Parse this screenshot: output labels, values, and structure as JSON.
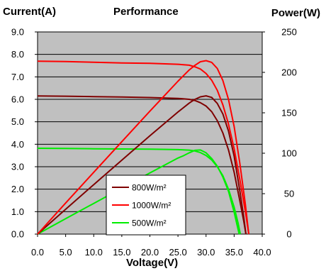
{
  "chart_data": {
    "type": "line",
    "title": "Performance",
    "xlabel": "Voltage(V)",
    "ylabel": "Current(A)",
    "y2label": "Power(W)",
    "xlim": [
      0,
      40
    ],
    "ylim": [
      0,
      9
    ],
    "y2lim": [
      0,
      250
    ],
    "x_ticks": [
      "0.0",
      "5.0",
      "10.0",
      "15.0",
      "20.0",
      "25.0",
      "30.0",
      "35.0",
      "40.0"
    ],
    "y_ticks": [
      "0.0",
      "1.0",
      "2.0",
      "3.0",
      "4.0",
      "5.0",
      "6.0",
      "7.0",
      "8.0",
      "9.0"
    ],
    "y2_ticks": [
      "0",
      "50",
      "100",
      "150",
      "200",
      "250"
    ],
    "grid": true,
    "legend_position": "bottom-center",
    "series": [
      {
        "name": "800W/m²",
        "color": "#7f0000",
        "current": [
          [
            0,
            6.15
          ],
          [
            5,
            6.14
          ],
          [
            10,
            6.12
          ],
          [
            15,
            6.1
          ],
          [
            20,
            6.08
          ],
          [
            25,
            6.04
          ],
          [
            27,
            6.0
          ],
          [
            28,
            5.95
          ],
          [
            29,
            5.85
          ],
          [
            30,
            5.7
          ],
          [
            31,
            5.45
          ],
          [
            32,
            5.05
          ],
          [
            33,
            4.5
          ],
          [
            34,
            3.75
          ],
          [
            35,
            2.75
          ],
          [
            36,
            1.5
          ],
          [
            36.7,
            0.6
          ],
          [
            37.1,
            0
          ]
        ],
        "power": [
          [
            0,
            0
          ],
          [
            5,
            30.7
          ],
          [
            10,
            61.2
          ],
          [
            15,
            91.5
          ],
          [
            20,
            121.6
          ],
          [
            25,
            151
          ],
          [
            27,
            162
          ],
          [
            28,
            166.6
          ],
          [
            29,
            169.7
          ],
          [
            30,
            171
          ],
          [
            31,
            169
          ],
          [
            32,
            161.6
          ],
          [
            33,
            148.5
          ],
          [
            34,
            127.5
          ],
          [
            35,
            96.3
          ],
          [
            36,
            54
          ],
          [
            36.7,
            22
          ],
          [
            37.1,
            0
          ]
        ]
      },
      {
        "name": "1000W/m²",
        "color": "#ff0000",
        "current": [
          [
            0,
            7.7
          ],
          [
            5,
            7.68
          ],
          [
            10,
            7.65
          ],
          [
            15,
            7.62
          ],
          [
            20,
            7.6
          ],
          [
            25,
            7.56
          ],
          [
            27,
            7.52
          ],
          [
            28,
            7.45
          ],
          [
            29,
            7.35
          ],
          [
            30,
            7.15
          ],
          [
            31,
            6.85
          ],
          [
            32,
            6.4
          ],
          [
            33,
            5.75
          ],
          [
            34,
            4.9
          ],
          [
            35,
            3.8
          ],
          [
            36,
            2.45
          ],
          [
            37,
            1.0
          ],
          [
            37.6,
            0
          ]
        ],
        "power": [
          [
            0,
            0
          ],
          [
            5,
            38.4
          ],
          [
            10,
            76.5
          ],
          [
            15,
            114.3
          ],
          [
            20,
            152
          ],
          [
            25,
            189
          ],
          [
            27,
            203
          ],
          [
            28,
            208.6
          ],
          [
            29,
            213.2
          ],
          [
            30,
            214.5
          ],
          [
            31,
            212.4
          ],
          [
            32,
            204.8
          ],
          [
            33,
            189.8
          ],
          [
            34,
            166.6
          ],
          [
            35,
            133
          ],
          [
            36,
            88.2
          ],
          [
            37,
            37
          ],
          [
            37.6,
            0
          ]
        ]
      },
      {
        "name": "500W/m²",
        "color": "#00ee00",
        "current": [
          [
            0,
            3.82
          ],
          [
            5,
            3.81
          ],
          [
            10,
            3.8
          ],
          [
            15,
            3.79
          ],
          [
            20,
            3.78
          ],
          [
            25,
            3.76
          ],
          [
            27,
            3.74
          ],
          [
            28,
            3.7
          ],
          [
            29,
            3.63
          ],
          [
            30,
            3.5
          ],
          [
            31,
            3.3
          ],
          [
            32,
            3.0
          ],
          [
            33,
            2.6
          ],
          [
            34,
            2.0
          ],
          [
            35,
            1.2
          ],
          [
            35.7,
            0.5
          ],
          [
            36.1,
            0
          ]
        ],
        "power": [
          [
            0,
            0
          ],
          [
            5,
            19
          ],
          [
            10,
            38
          ],
          [
            15,
            56.9
          ],
          [
            20,
            75.6
          ],
          [
            25,
            94
          ],
          [
            26,
            97
          ],
          [
            27,
            100.5
          ],
          [
            28,
            103.6
          ],
          [
            29,
            104
          ],
          [
            30,
            100.5
          ],
          [
            31,
            93.5
          ],
          [
            32,
            84
          ],
          [
            33,
            70.5
          ],
          [
            34,
            53
          ],
          [
            35,
            27
          ],
          [
            35.5,
            12
          ],
          [
            35.9,
            0
          ]
        ]
      }
    ]
  }
}
